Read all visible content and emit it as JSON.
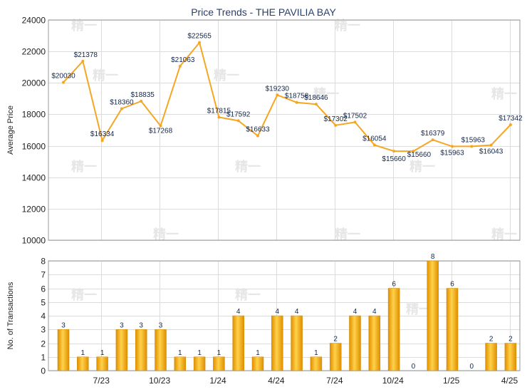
{
  "chart_data": [
    {
      "type": "line",
      "title": "Price Trends - THE PAVILIA BAY",
      "ylabel": "Average Price",
      "ylim": [
        10000,
        24000
      ],
      "yticks": [
        "10000",
        "12000",
        "14000",
        "16000",
        "18000",
        "20000",
        "22000",
        "24000"
      ],
      "xticks": [
        "7/23",
        "10/23",
        "1/24",
        "4/24",
        "7/24",
        "10/24",
        "1/25",
        "4/25"
      ],
      "grid": true,
      "color": "#f5a623",
      "series": [
        {
          "values": [
            20030,
            21378,
            16334,
            18360,
            18835,
            17268,
            21063,
            22565,
            17815,
            17592,
            16633,
            19230,
            18758,
            18646,
            17302,
            17502,
            16054,
            15660,
            15660,
            16379,
            15963,
            15963,
            16043,
            17342
          ],
          "labels": [
            "$20030",
            "$21378",
            "$16334",
            "$18360",
            "$18835",
            "$17268",
            "$21063",
            "$22565",
            "$17815",
            "$17592",
            "$16633",
            "$19230",
            "$18758",
            "$18646",
            "$17302",
            "$17502",
            "$16054",
            "$15660",
            "$15660",
            "$16379",
            "$15963",
            "$15963",
            "$16043",
            "$17342"
          ]
        }
      ]
    },
    {
      "type": "bar",
      "ylabel": "No. of Transactions",
      "ylim": [
        0,
        8
      ],
      "yticks": [
        "0",
        "1",
        "2",
        "3",
        "4",
        "5",
        "6",
        "7",
        "8"
      ],
      "xticks": [
        "7/23",
        "10/23",
        "1/24",
        "4/24",
        "7/24",
        "10/24",
        "1/25",
        "4/25"
      ],
      "grid": true,
      "color": "#f0a818",
      "values": [
        3,
        1,
        1,
        3,
        3,
        3,
        1,
        1,
        1,
        4,
        1,
        4,
        4,
        1,
        2,
        4,
        4,
        6,
        0,
        8,
        6,
        0,
        2,
        2
      ]
    }
  ]
}
